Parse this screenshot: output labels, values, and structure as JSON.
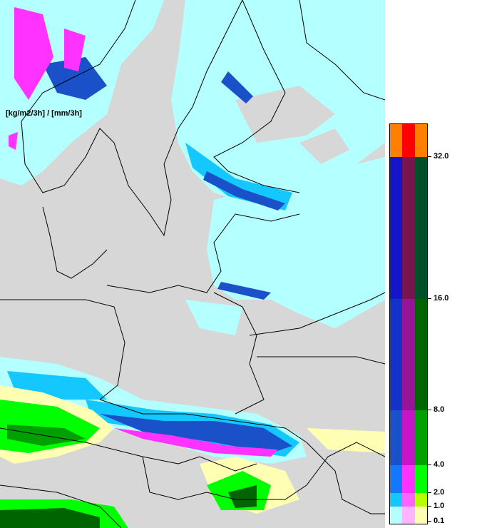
{
  "legend": {
    "unit_label": "[kg/m2/3h] / [mm/3h]",
    "ticks": [
      "32.0",
      "16.0",
      "8.0",
      "4.0",
      "2.0",
      "1.0",
      "0.1"
    ],
    "bins": [
      {
        "min": 32.0,
        "max": null,
        "colors": [
          "#ff8000",
          "#ff0000",
          "#ff8000"
        ]
      },
      {
        "min": 16.0,
        "max": 32.0,
        "colors": [
          "#1414c8",
          "#781450",
          "#005028"
        ]
      },
      {
        "min": 8.0,
        "max": 16.0,
        "colors": [
          "#1432c8",
          "#961496",
          "#006400"
        ]
      },
      {
        "min": 4.0,
        "max": 8.0,
        "colors": [
          "#1a50c8",
          "#c814c8",
          "#00a000"
        ]
      },
      {
        "min": 2.0,
        "max": 4.0,
        "colors": [
          "#1478ff",
          "#ff32ff",
          "#00ff00"
        ]
      },
      {
        "min": 1.0,
        "max": 2.0,
        "colors": [
          "#14c8ff",
          "#ff64ff",
          "#b4ff00"
        ]
      },
      {
        "min": 0.1,
        "max": 1.0,
        "colors": [
          "#b4ffff",
          "#ffb4ff",
          "#ffffb4"
        ]
      }
    ]
  },
  "map": {
    "background_color": "#d7d7d7",
    "coastline_color": "#000000"
  }
}
